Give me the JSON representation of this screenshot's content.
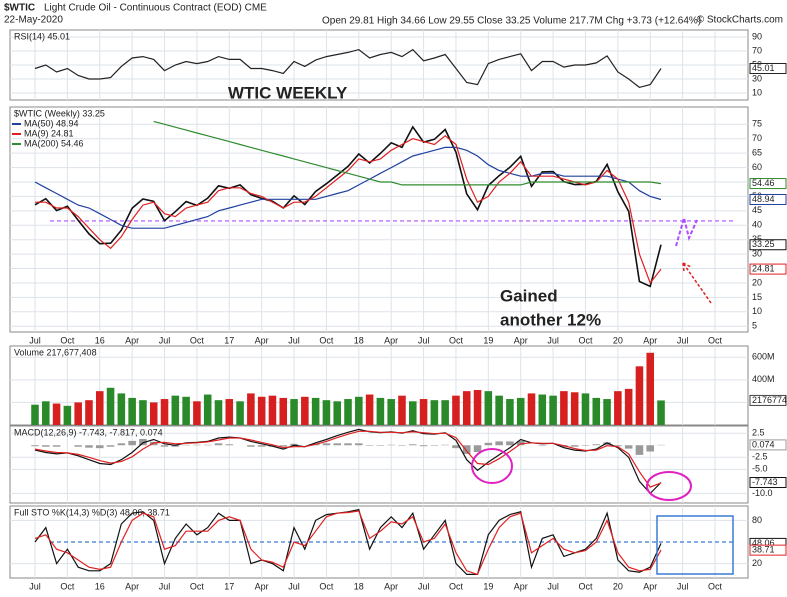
{
  "header": {
    "symbol": "$WTIC",
    "name": "Light Crude Oil - Continuous Contract (EOD) CME",
    "date": "22-May-2020",
    "quote": "Open 29.81 High 34.66 Low 29.55 Close 33.25 Volume 217.7M Chg +3.73 (+12.64%)",
    "credit": "© StockCharts.com"
  },
  "chart_data": [
    {
      "type": "line",
      "title": "RSI(14) 45.01",
      "ylim": [
        0,
        100
      ],
      "yticks": [
        10,
        30,
        50,
        70,
        90
      ],
      "grid": true,
      "series": [
        {
          "color": "#222222",
          "end_label": true,
          "values": [
            45,
            50,
            40,
            45,
            35,
            30,
            30,
            32,
            48,
            60,
            62,
            58,
            42,
            50,
            55,
            52,
            55,
            62,
            58,
            58,
            45,
            45,
            42,
            38,
            55,
            48,
            57,
            62,
            65,
            68,
            72,
            60,
            65,
            68,
            62,
            72,
            56,
            60,
            65,
            45,
            25,
            22,
            52,
            58,
            62,
            66,
            42,
            55,
            55,
            47,
            50,
            50,
            53,
            63,
            40,
            30,
            18,
            22,
            45.01,
            null,
            null,
            null,
            null,
            null
          ]
        }
      ]
    },
    {
      "type": "line",
      "title": "$WTIC (Weekly) 33.25",
      "ylim": [
        3,
        81
      ],
      "yticks": [
        5,
        10,
        15,
        20,
        25,
        30,
        35,
        40,
        45,
        50,
        55,
        60,
        65,
        70,
        75
      ],
      "grid": true,
      "categories": [
        "Jul",
        null,
        null,
        "Oct",
        null,
        null,
        "16",
        null,
        null,
        "Apr",
        null,
        null,
        "Jul",
        null,
        null,
        "Oct",
        null,
        null,
        "17",
        null,
        null,
        "Apr",
        null,
        null,
        "Jul",
        null,
        null,
        "Oct",
        null,
        null,
        "18",
        null,
        null,
        "Apr",
        null,
        null,
        "Jul",
        null,
        null,
        "Oct",
        null,
        null,
        "19",
        null,
        null,
        "Apr",
        null,
        null,
        "Jul",
        null,
        null,
        "Oct",
        null,
        null,
        "20",
        null,
        null,
        "Apr",
        null,
        null,
        "Jul",
        null,
        null,
        "Oct"
      ],
      "hlines": [
        {
          "value": 41.5,
          "color": "#b04cff"
        }
      ],
      "annotations": [
        "WTIC WEEKLY",
        "Gained",
        "another 12%"
      ],
      "series": [
        {
          "color": "#111111",
          "end_label": true,
          "values": [
            47.1,
            49.2,
            45.1,
            46.6,
            41.7,
            37.0,
            33.6,
            33.8,
            38.3,
            45.9,
            49.1,
            48.3,
            41.6,
            44.7,
            48.2,
            46.9,
            49.4,
            53.7,
            52.8,
            54.0,
            50.6,
            49.3,
            48.3,
            46.0,
            50.2,
            47.2,
            51.7,
            54.4,
            57.4,
            60.4,
            64.7,
            61.6,
            64.9,
            68.6,
            67.0,
            74.1,
            68.8,
            69.8,
            73.2,
            65.3,
            50.9,
            45.4,
            53.8,
            57.2,
            60.1,
            63.9,
            53.5,
            58.5,
            58.6,
            55.1,
            54.1,
            54.2,
            55.2,
            61.1,
            51.6,
            44.8,
            20.5,
            18.8,
            33.25,
            null,
            null,
            null,
            null,
            null
          ]
        },
        {
          "name": "MA(50) 48.94",
          "color": "#2040a0",
          "end_label": true,
          "values": [
            55,
            53,
            51,
            49,
            47,
            46,
            44,
            42,
            40,
            39,
            39,
            39,
            39,
            40,
            41,
            42,
            43,
            45,
            46,
            47,
            48,
            49,
            49,
            49,
            49,
            49,
            49,
            50,
            51,
            52,
            54,
            56,
            58,
            60,
            62,
            64,
            65,
            66,
            67,
            67,
            66,
            64,
            61,
            59,
            58,
            57,
            57,
            58,
            58,
            57,
            57,
            57,
            57,
            57,
            56,
            55,
            52,
            50,
            48.94,
            null,
            null,
            null,
            null,
            null
          ]
        },
        {
          "name": "MA(9) 24.81",
          "color": "#e02020",
          "end_label": true,
          "values": [
            48,
            48,
            46,
            46,
            43,
            39,
            35,
            32,
            36,
            42,
            47,
            48,
            44,
            43,
            46,
            47,
            48,
            52,
            53,
            53,
            51,
            50,
            48,
            46,
            48,
            48,
            50,
            53,
            56,
            59,
            63,
            62,
            63,
            66,
            68,
            70,
            69,
            68,
            71,
            68,
            56,
            48,
            50,
            55,
            58,
            62,
            57,
            57,
            57,
            56,
            55,
            54,
            55,
            59,
            56,
            48,
            30,
            20,
            24.81,
            null,
            null,
            null,
            null,
            null
          ]
        },
        {
          "name": "MA(200) 54.46",
          "color": "#2e8b2e",
          "end_label": true,
          "values": [
            null,
            null,
            null,
            null,
            null,
            null,
            null,
            null,
            null,
            null,
            null,
            76,
            75,
            74,
            73,
            72,
            71,
            70,
            69,
            68,
            67,
            66,
            65,
            64,
            63,
            62,
            61,
            60,
            59,
            58,
            57,
            56,
            55,
            55,
            54,
            54,
            54,
            54,
            54,
            54,
            54,
            54,
            54,
            54,
            54,
            54,
            55,
            55,
            55,
            55,
            55,
            55,
            55,
            55,
            55,
            55,
            55,
            55,
            54.46,
            null,
            null,
            null,
            null,
            null
          ]
        }
      ]
    },
    {
      "type": "bar",
      "title": "Volume 217,677,408",
      "ylim": [
        0,
        700000000
      ],
      "yticks": [
        {
          "value": 200000000,
          "label": "200M"
        },
        {
          "value": 400000000,
          "label": "400M"
        },
        {
          "value": 600000000,
          "label": "600M"
        }
      ],
      "grid": true,
      "series": [
        {
          "end_label": true,
          "colors": [
            "#2a8a2a",
            "#d62020"
          ],
          "values": [
            180000000,
            210000000,
            190000000,
            170000000,
            200000000,
            220000000,
            300000000,
            330000000,
            280000000,
            240000000,
            220000000,
            200000000,
            230000000,
            260000000,
            250000000,
            210000000,
            270000000,
            220000000,
            230000000,
            210000000,
            280000000,
            250000000,
            260000000,
            240000000,
            230000000,
            250000000,
            240000000,
            220000000,
            210000000,
            230000000,
            250000000,
            270000000,
            240000000,
            230000000,
            260000000,
            210000000,
            230000000,
            220000000,
            220000000,
            260000000,
            300000000,
            310000000,
            300000000,
            260000000,
            230000000,
            240000000,
            280000000,
            270000000,
            260000000,
            300000000,
            290000000,
            280000000,
            240000000,
            230000000,
            300000000,
            320000000,
            520000000,
            640000000,
            217677408,
            null,
            null,
            null,
            null,
            null
          ]
        }
      ]
    },
    {
      "type": "line",
      "title": "MACD(12,26,9) -7.743, -7.817, 0.074",
      "ylim": [
        -12,
        4
      ],
      "yticks": [
        2.5,
        -2.5,
        {
          "value": -5,
          "label": "-5.0"
        },
        {
          "value": -10,
          "label": "-10.0"
        }
      ],
      "grid": true,
      "series": [
        {
          "kind": "bar",
          "color": "#9a9a9a",
          "end_label": true,
          "values": [
            -0.2,
            -0.3,
            -0.3,
            0,
            -0.3,
            -0.5,
            -0.6,
            -0.3,
            0.4,
            0.9,
            1.3,
            0.7,
            -0.3,
            -0.3,
            0.1,
            0.1,
            0.1,
            0.4,
            0.2,
            0,
            -0.3,
            -0.3,
            -0.3,
            -0.3,
            0.3,
            0,
            0.3,
            0.4,
            0.4,
            0.4,
            0.4,
            -0.1,
            -0.1,
            0.1,
            -0.1,
            0.2,
            -0.2,
            -0.1,
            0.1,
            -0.6,
            -1.8,
            -1.4,
            0.5,
            0.8,
            0.8,
            0.9,
            0,
            -0.1,
            0,
            -0.4,
            -0.3,
            -0.1,
            0.2,
            0.6,
            -0.2,
            -0.7,
            -2,
            -1.3,
            0.074,
            null,
            null,
            null,
            null,
            null
          ]
        },
        {
          "color": "#111111",
          "end_label": true,
          "values": [
            -1,
            -1.5,
            -1.8,
            -1.6,
            -2.2,
            -3,
            -3.8,
            -4,
            -3,
            -1.5,
            0.5,
            1.2,
            0.3,
            0,
            0.5,
            0.6,
            0.8,
            1.5,
            1.7,
            1.5,
            0.8,
            0.3,
            -0.2,
            -0.8,
            0,
            -0.3,
            0.5,
            1.2,
            2,
            2.7,
            3.3,
            2.8,
            2.6,
            2.8,
            2.5,
            3,
            2.4,
            2.3,
            2.6,
            1,
            -3,
            -5.2,
            -3.5,
            -2,
            -0.5,
            1.2,
            0.5,
            0.3,
            0.4,
            -0.5,
            -1,
            -1.2,
            -0.8,
            0.5,
            -0.5,
            -2.5,
            -7.5,
            -10,
            -7.743,
            null,
            null,
            null,
            null,
            null
          ]
        },
        {
          "color": "#e02020",
          "values": [
            -0.8,
            -1.2,
            -1.5,
            -1.6,
            -1.9,
            -2.5,
            -3.2,
            -3.7,
            -3.4,
            -2.4,
            -0.8,
            0.5,
            0.6,
            0.3,
            0.4,
            0.5,
            0.7,
            1.1,
            1.5,
            1.5,
            1.1,
            0.6,
            0.1,
            -0.5,
            -0.3,
            -0.3,
            0.2,
            0.8,
            1.6,
            2.3,
            2.9,
            2.9,
            2.7,
            2.7,
            2.6,
            2.8,
            2.6,
            2.4,
            2.5,
            1.6,
            -1.2,
            -3.8,
            -4,
            -2.8,
            -1.3,
            0.3,
            0.5,
            0.4,
            0.4,
            -0.1,
            -0.7,
            -1.1,
            -1,
            -0.1,
            -0.3,
            -1.8,
            -5.5,
            -8.7,
            -7.817,
            null,
            null,
            null,
            null,
            null
          ]
        }
      ]
    },
    {
      "type": "line",
      "title": "Full STO %K(14,3) %D(3) 48.06, 38.71",
      "ylim": [
        0,
        100
      ],
      "yticks": [
        20,
        80
      ],
      "grid": true,
      "categories": [
        "Jul",
        null,
        null,
        "Oct",
        null,
        null,
        "16",
        null,
        null,
        "Apr",
        null,
        null,
        "Jul",
        null,
        null,
        "Oct",
        null,
        null,
        "17",
        null,
        null,
        "Apr",
        null,
        null,
        "Jul",
        null,
        null,
        "Oct",
        null,
        null,
        "18",
        null,
        null,
        "Apr",
        null,
        null,
        "Jul",
        null,
        null,
        "Oct",
        null,
        null,
        "19",
        null,
        null,
        "Apr",
        null,
        null,
        "Jul",
        null,
        null,
        "Oct",
        null,
        null,
        "20",
        null,
        null,
        "Apr",
        null,
        null,
        "Jul",
        null,
        null,
        "Oct"
      ],
      "hlines": [
        {
          "value": 50,
          "color": "#3a7bd5"
        }
      ],
      "series": [
        {
          "color": "#111111",
          "end_label": true,
          "values": [
            50,
            70,
            20,
            40,
            15,
            10,
            10,
            20,
            75,
            90,
            92,
            80,
            20,
            55,
            75,
            60,
            70,
            90,
            80,
            80,
            20,
            25,
            20,
            10,
            70,
            40,
            80,
            88,
            90,
            92,
            95,
            40,
            70,
            85,
            70,
            90,
            40,
            60,
            80,
            20,
            5,
            5,
            60,
            80,
            88,
            92,
            15,
            55,
            60,
            30,
            35,
            40,
            55,
            90,
            25,
            10,
            8,
            15,
            48.06,
            null,
            null,
            null,
            null,
            null
          ]
        },
        {
          "color": "#e02020",
          "end_label": true,
          "values": [
            55,
            60,
            40,
            35,
            25,
            15,
            12,
            15,
            50,
            80,
            90,
            85,
            40,
            45,
            65,
            65,
            65,
            80,
            85,
            80,
            40,
            25,
            22,
            15,
            50,
            45,
            65,
            85,
            90,
            91,
            93,
            55,
            65,
            78,
            75,
            85,
            50,
            55,
            75,
            35,
            10,
            5,
            40,
            70,
            85,
            90,
            35,
            45,
            55,
            40,
            35,
            38,
            50,
            80,
            35,
            15,
            10,
            12,
            38.71,
            null,
            null,
            null,
            null,
            null
          ]
        }
      ]
    }
  ]
}
